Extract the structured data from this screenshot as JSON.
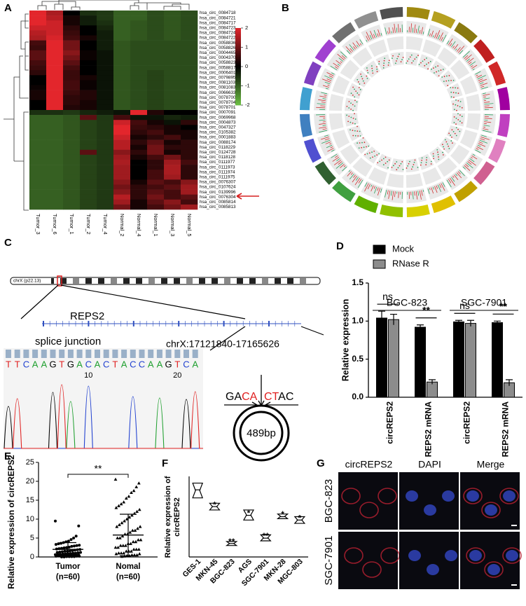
{
  "panel_labels": [
    "A",
    "B",
    "C",
    "D",
    "E",
    "F",
    "G"
  ],
  "diagram": {
    "region": "chrX (p22.13)",
    "gene": "REPS2",
    "splice_label": "splice junction",
    "coordinates": "chrX:17121840-17165626",
    "sequence": [
      "T",
      "T",
      "C",
      "A",
      "A",
      "G",
      "T",
      "G",
      "A",
      "C",
      "A",
      "C",
      "T",
      "A",
      "C",
      "C",
      "A",
      "A",
      "G",
      "T",
      "C",
      "A"
    ],
    "sequence_positions": [
      10,
      20
    ],
    "junction_left": [
      "GA",
      "CA"
    ],
    "junction_right": [
      "CT",
      "AC"
    ],
    "size": "489bp"
  },
  "microscopy": {
    "columns": [
      "circREPS2",
      "DAPI",
      "Merge"
    ],
    "rows": [
      "BGC-823",
      "SGC-7901"
    ]
  },
  "chart_data": [
    {
      "type": "heatmap",
      "columns": [
        "Tumor_3",
        "Tumor_6",
        "Tumor_1",
        "Tumor_2",
        "Tumor_4",
        "Normal_2",
        "Normal_4",
        "Normal_1",
        "Normal_3",
        "Normal_5"
      ],
      "rows": [
        "hsa_circ_0084718",
        "hsa_circ_0084721",
        "hsa_circ_0084717",
        "hsa_circ_0084723",
        "hsa_circ_0084724",
        "hsa_circ_0084722",
        "hsa_circ_0058836",
        "hsa_circ_0058826",
        "hsa_circ_0004465",
        "hsa_circ_0004370",
        "hsa_circ_0058823",
        "hsa_circ_0058817",
        "hsa_circ_0006401",
        "hsa_circ_0079895",
        "hsa_circ_0081103",
        "hsa_circ_0081083",
        "hsa_circ_0066633",
        "hsa_circ_0078700",
        "hsa_circ_0078704",
        "hsa_circ_0078701",
        "hsa_circ_0007091",
        "hsa_circ_0069968",
        "hsa_circ_0004873",
        "hsa_circ_0047327",
        "hsa_circ_0105382",
        "hsa_circ_0001883",
        "hsa_circ_0088174",
        "hsa_circ_0118229",
        "hsa_circ_0124728",
        "hsa_circ_0118128",
        "hsa_circ_0111977",
        "hsa_circ_0111973",
        "hsa_circ_0111974",
        "hsa_circ_0111975",
        "hsa_circ_0076307",
        "hsa_circ_0107624",
        "hsa_circ_0139996",
        "hsa_circ_0076304",
        "hsa_circ_0085814",
        "hsa_circ_0085813"
      ],
      "values": [
        [
          2.0,
          1.5,
          0.0,
          -0.5,
          -0.6,
          -1.0,
          -1.0,
          -0.8,
          -0.9,
          -0.8
        ],
        [
          2.2,
          1.6,
          0.2,
          -0.3,
          -0.6,
          -1.0,
          -1.0,
          -0.8,
          -0.9,
          -0.8
        ],
        [
          2.0,
          1.8,
          0.2,
          -0.3,
          -0.5,
          -1.0,
          -0.9,
          -0.8,
          -0.9,
          -0.8
        ],
        [
          1.8,
          1.8,
          0.4,
          0.0,
          -0.4,
          -1.0,
          -0.9,
          -0.8,
          -0.9,
          -0.8
        ],
        [
          1.6,
          1.8,
          0.5,
          0.0,
          -0.3,
          -1.0,
          -0.9,
          -0.8,
          -0.9,
          -0.8
        ],
        [
          1.5,
          1.9,
          0.6,
          0.2,
          -0.3,
          -1.0,
          -0.9,
          -0.8,
          -0.9,
          -0.8
        ],
        [
          0.6,
          2.5,
          1.0,
          0.0,
          -0.3,
          -0.9,
          -0.8,
          -0.8,
          -0.8,
          -0.8
        ],
        [
          0.5,
          2.5,
          1.0,
          0.0,
          -0.3,
          -0.9,
          -0.8,
          -0.8,
          -0.8,
          -0.8
        ],
        [
          0.8,
          2.3,
          1.2,
          0.1,
          -0.2,
          -0.9,
          -0.8,
          -0.8,
          -0.8,
          -0.8
        ],
        [
          0.8,
          2.3,
          1.0,
          0.1,
          -0.2,
          -0.9,
          -0.8,
          -0.8,
          -0.8,
          -0.8
        ],
        [
          0.6,
          2.5,
          0.8,
          0.0,
          -0.2,
          -0.9,
          -0.8,
          -0.8,
          -0.8,
          -0.8
        ],
        [
          0.5,
          2.5,
          0.6,
          0.0,
          -0.2,
          -0.9,
          -0.8,
          -0.8,
          -0.8,
          -0.8
        ],
        [
          0.4,
          2.2,
          0.5,
          0.0,
          -0.2,
          -0.9,
          -0.8,
          -0.7,
          -0.8,
          -0.8
        ],
        [
          0.0,
          2.4,
          0.5,
          0.2,
          -0.2,
          -0.9,
          -0.8,
          -0.7,
          -0.8,
          -0.8
        ],
        [
          0.0,
          2.4,
          0.6,
          0.1,
          -0.2,
          -0.9,
          -0.8,
          -0.7,
          -0.8,
          -0.8
        ],
        [
          0.1,
          2.4,
          0.6,
          0.1,
          -0.2,
          -0.9,
          -0.8,
          -0.7,
          -0.8,
          -0.8
        ],
        [
          0.2,
          2.2,
          0.5,
          0.3,
          -0.2,
          -0.9,
          -0.8,
          -0.7,
          -0.8,
          -0.8
        ],
        [
          0.2,
          2.2,
          0.4,
          0.3,
          -0.2,
          -0.9,
          -0.8,
          -0.7,
          -0.8,
          -0.8
        ],
        [
          0.0,
          2.0,
          0.4,
          0.2,
          -0.2,
          -0.9,
          -0.8,
          -0.7,
          -0.8,
          -0.8
        ],
        [
          0.0,
          2.0,
          0.3,
          0.2,
          -0.2,
          -0.9,
          -0.8,
          -0.7,
          -0.8,
          -0.8
        ],
        [
          -0.5,
          -0.5,
          -0.6,
          -0.4,
          -0.3,
          -0.2,
          2.5,
          0.3,
          0.0,
          0.0
        ],
        [
          -1.0,
          -1.0,
          -0.9,
          0.8,
          -0.6,
          0.6,
          -0.2,
          -0.2,
          -0.4,
          -0.3
        ],
        [
          -1.0,
          -1.0,
          -0.9,
          -0.7,
          -0.6,
          1.8,
          0.6,
          0.2,
          -0.2,
          0.4
        ],
        [
          -1.0,
          -1.0,
          -0.9,
          -0.7,
          -0.6,
          2.2,
          0.5,
          0.4,
          0.2,
          0.0
        ],
        [
          -1.0,
          -1.0,
          -0.9,
          -0.7,
          -0.6,
          2.0,
          0.4,
          0.6,
          0.2,
          0.2
        ],
        [
          -1.0,
          -1.0,
          -0.9,
          -0.7,
          -0.6,
          1.8,
          0.2,
          0.4,
          0.6,
          0.2
        ],
        [
          -1.0,
          -1.0,
          -0.9,
          -0.7,
          -0.6,
          1.6,
          0.4,
          0.8,
          0.2,
          0.4
        ],
        [
          -1.0,
          -1.0,
          -0.9,
          -0.7,
          -0.6,
          1.6,
          0.2,
          1.0,
          0.4,
          0.4
        ],
        [
          -1.0,
          -1.0,
          -0.9,
          0.8,
          -0.6,
          1.2,
          0.4,
          1.0,
          0.2,
          0.4
        ],
        [
          -1.0,
          -1.0,
          -0.9,
          -0.7,
          -0.6,
          1.4,
          0.2,
          0.6,
          1.0,
          0.4
        ],
        [
          -1.0,
          -1.0,
          -0.9,
          -0.7,
          -0.6,
          1.5,
          0.0,
          0.4,
          1.4,
          0.6
        ],
        [
          -1.0,
          -1.0,
          -0.9,
          -0.7,
          -0.6,
          1.4,
          0.0,
          0.4,
          1.5,
          0.4
        ],
        [
          -1.0,
          -1.0,
          -0.9,
          -0.7,
          -0.6,
          1.4,
          0.0,
          0.6,
          1.5,
          0.4
        ],
        [
          -1.0,
          -1.0,
          -0.9,
          -0.7,
          -0.6,
          1.4,
          0.0,
          0.6,
          1.4,
          0.4
        ],
        [
          -1.0,
          -1.0,
          -0.9,
          -0.7,
          -0.6,
          1.2,
          0.2,
          0.8,
          0.6,
          1.2
        ],
        [
          -1.0,
          -1.0,
          -0.9,
          -0.7,
          -0.6,
          1.0,
          0.4,
          0.6,
          0.8,
          1.4
        ],
        [
          -1.0,
          -1.0,
          -0.9,
          -0.7,
          -0.6,
          1.2,
          0.4,
          0.8,
          0.6,
          1.4
        ],
        [
          -1.0,
          -1.0,
          -0.9,
          -0.7,
          -0.6,
          1.6,
          0.4,
          1.0,
          0.6,
          0.8
        ],
        [
          -1.0,
          -1.0,
          -0.9,
          -0.7,
          -0.6,
          1.4,
          0.2,
          0.8,
          1.2,
          0.6
        ],
        [
          -1.0,
          -1.0,
          -0.9,
          -0.7,
          -0.6,
          1.0,
          0.2,
          0.6,
          1.0,
          1.4
        ]
      ],
      "clim": [
        -2,
        2
      ],
      "colorbar_ticks": [
        2,
        1,
        0,
        -1,
        -2
      ],
      "colors": [
        "#6cbf43",
        "#000000",
        "#e3262c"
      ]
    },
    {
      "type": "bar",
      "ylabel": "Relative expression",
      "groups": [
        "BGC-823",
        "SGC-7901"
      ],
      "categories": [
        "circREPS2",
        "REPS2 mRNA",
        "circREPS2",
        "REPS2 mRNA"
      ],
      "series": [
        {
          "name": "Mock",
          "color": "#000000",
          "values": [
            1.04,
            0.92,
            0.99,
            0.98
          ],
          "errors": [
            0.09,
            0.03,
            0.02,
            0.02
          ]
        },
        {
          "name": "RNase R",
          "color": "#8c8c8c",
          "values": [
            1.02,
            0.2,
            0.97,
            0.19
          ],
          "errors": [
            0.07,
            0.03,
            0.04,
            0.04
          ]
        }
      ],
      "annotations": [
        "ns",
        "**",
        "ns",
        "**"
      ],
      "ylim": [
        0,
        1.5
      ],
      "yticks": [
        {
          "value": 0,
          "label": "0.0"
        },
        {
          "value": 0.5,
          "label": "0.5"
        },
        {
          "value": 1,
          "label": "1.0"
        },
        {
          "value": 1.5,
          "label": "1.5"
        }
      ]
    },
    {
      "type": "dot",
      "ylabel": "Relative expression of circREPS2",
      "significance": "**",
      "groups": [
        {
          "label": "Tumor",
          "n_label": "(n=60)",
          "mean": 2.0,
          "sd": 1.8,
          "values": [
            9.5,
            8.2,
            5.5,
            5,
            4.6,
            4.2,
            4,
            3.8,
            3.6,
            3.5,
            3.3,
            3.1,
            3,
            2.9,
            2.8,
            2.6,
            2.5,
            2.4,
            2.3,
            2.2,
            2.1,
            2,
            1.9,
            1.8,
            1.7,
            1.6,
            1.5,
            1.5,
            1.4,
            1.3,
            1.2,
            1.2,
            1.1,
            1,
            1,
            0.9,
            0.9,
            0.8,
            0.8,
            0.7,
            0.7,
            0.6,
            0.6,
            0.5,
            0.5,
            0.5,
            0.4,
            0.4,
            0.3,
            0.3,
            0.3,
            0.2,
            0.2,
            0.2,
            0.1,
            0.1,
            0.1,
            0.1,
            0,
            0
          ]
        },
        {
          "label": "Nomal",
          "n_label": "(n=60)",
          "mean": 5.8,
          "sd": 5.5,
          "values": [
            20.5,
            19.5,
            18.5,
            17.5,
            17,
            16,
            15.5,
            14.5,
            14,
            13.5,
            13,
            12.5,
            12,
            11.5,
            11,
            10.5,
            10,
            9.5,
            9,
            8.5,
            8,
            8,
            7.5,
            7,
            7,
            6.5,
            6,
            6,
            5.5,
            5,
            5,
            4.5,
            4.5,
            4,
            4,
            3.5,
            3.5,
            3,
            3,
            3,
            2.5,
            2.5,
            2,
            2,
            2,
            1.5,
            1.5,
            1.5,
            1,
            1,
            1,
            0.8,
            0.8,
            0.5,
            0.5,
            0.5,
            0.3,
            0.3,
            0.2,
            0.1
          ]
        }
      ],
      "ylim": [
        0,
        25
      ],
      "yticks": [
        0,
        5,
        10,
        15,
        20,
        25
      ]
    },
    {
      "type": "box",
      "ylabel": [
        "Relative expression of",
        "circREPS2"
      ],
      "categories": [
        "GES-1",
        "MKN-45",
        "BGC-823",
        "AGS",
        "SGC-7901",
        "MKN-28",
        "MGC-803"
      ],
      "medians": [
        1.0,
        0.75,
        0.2,
        0.62,
        0.28,
        0.6,
        0.55
      ],
      "lows": [
        0.88,
        0.7,
        0.17,
        0.55,
        0.24,
        0.57,
        0.5
      ],
      "highs": [
        1.1,
        0.8,
        0.23,
        0.7,
        0.33,
        0.64,
        0.6
      ],
      "annotations": [
        null,
        "*",
        "**",
        "*",
        "**",
        "*",
        "*"
      ],
      "ylim": [
        0,
        1.2
      ]
    }
  ]
}
